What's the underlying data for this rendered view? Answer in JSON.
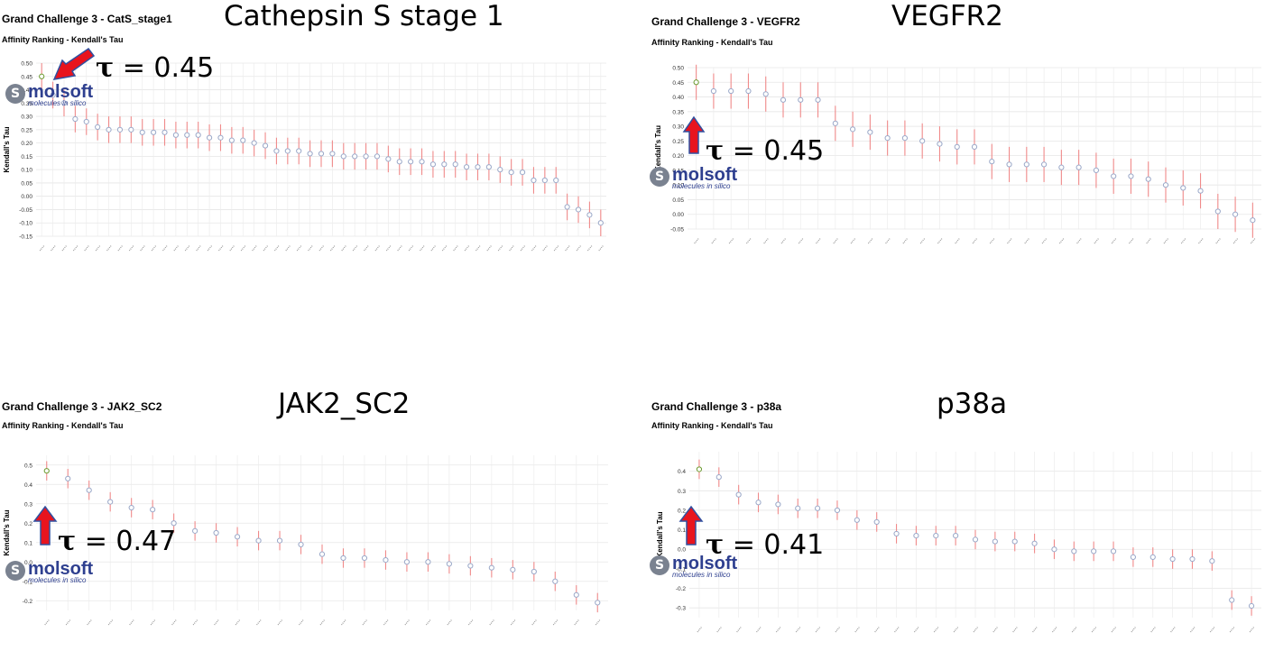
{
  "colors": {
    "errorbar": "#f08a8a",
    "marker": "#9aa8c8",
    "top_marker": "#6a9a2e",
    "arrow_fill": "#e8141e",
    "arrow_stroke": "#3050a0",
    "logo_blue": "#2e3f8f"
  },
  "logo": {
    "name": "molsoft",
    "tagline": "molecules in silico",
    "icon": "molsoft-s-icon"
  },
  "chart_data": [
    {
      "type": "scatter",
      "grand_title": "Grand Challenge 3 - CatS_stage1",
      "subtitle": "Affinity Ranking - Kendall's Tau",
      "big_title": "Cathepsin S stage 1",
      "annotation": {
        "symbol": "τ",
        "text": " = 0.45"
      },
      "arrow_direction": "down-left",
      "ylabel": "Kendall's Tau",
      "ylim": [
        -0.15,
        0.5
      ],
      "yticks": [
        "0.50",
        "0.45",
        "0.40",
        "0.35",
        "0.30",
        "0.25",
        "0.20",
        "0.15",
        "0.10",
        "0.05",
        "0.00",
        "-0.05",
        "-0.10",
        "-0.15"
      ],
      "values": [
        0.45,
        0.38,
        0.35,
        0.29,
        0.28,
        0.26,
        0.25,
        0.25,
        0.25,
        0.24,
        0.24,
        0.24,
        0.23,
        0.23,
        0.23,
        0.22,
        0.22,
        0.21,
        0.21,
        0.2,
        0.19,
        0.17,
        0.17,
        0.17,
        0.16,
        0.16,
        0.16,
        0.15,
        0.15,
        0.15,
        0.15,
        0.14,
        0.13,
        0.13,
        0.13,
        0.12,
        0.12,
        0.12,
        0.11,
        0.11,
        0.11,
        0.1,
        0.09,
        0.09,
        0.06,
        0.06,
        0.06,
        -0.04,
        -0.05,
        -0.07,
        -0.1
      ]
    },
    {
      "type": "scatter",
      "grand_title": "Grand Challenge 3 - VEGFR2",
      "subtitle": "Affinity Ranking - Kendall's Tau",
      "big_title": "VEGFR2",
      "annotation": {
        "symbol": "τ",
        "text": " = 0.45"
      },
      "arrow_direction": "up",
      "ylabel": "Kendall's Tau",
      "ylim": [
        -0.05,
        0.5
      ],
      "yticks": [
        "0.50",
        "0.45",
        "0.40",
        "0.35",
        "0.30",
        "0.25",
        "0.20",
        "0.15",
        "0.10",
        "0.05",
        "0.00",
        "-0.05"
      ],
      "values": [
        0.45,
        0.42,
        0.42,
        0.42,
        0.41,
        0.39,
        0.39,
        0.39,
        0.31,
        0.29,
        0.28,
        0.26,
        0.26,
        0.25,
        0.24,
        0.23,
        0.23,
        0.18,
        0.17,
        0.17,
        0.17,
        0.16,
        0.16,
        0.15,
        0.13,
        0.13,
        0.12,
        0.1,
        0.09,
        0.08,
        0.01,
        0.0,
        -0.02
      ]
    },
    {
      "type": "scatter",
      "grand_title": "Grand Challenge 3 - JAK2_SC2",
      "subtitle": "Affinity Ranking - Kendall's Tau",
      "big_title": "JAK2_SC2",
      "annotation": {
        "symbol": "τ",
        "text": " = 0.47"
      },
      "arrow_direction": "up",
      "ylabel": "Kendall's Tau",
      "ylim": [
        -0.25,
        0.55
      ],
      "yticks": [
        "0.5",
        "0.4",
        "0.3",
        "0.2",
        "0.1",
        "0.0",
        "-0.1",
        "-0.2"
      ],
      "values": [
        0.47,
        0.43,
        0.37,
        0.31,
        0.28,
        0.27,
        0.2,
        0.16,
        0.15,
        0.13,
        0.11,
        0.11,
        0.09,
        0.04,
        0.02,
        0.02,
        0.01,
        0.0,
        0.0,
        -0.01,
        -0.02,
        -0.03,
        -0.04,
        -0.05,
        -0.1,
        -0.17,
        -0.21
      ]
    },
    {
      "type": "scatter",
      "grand_title": "Grand Challenge 3 - p38a",
      "subtitle": "Affinity Ranking - Kendall's Tau",
      "big_title": "p38a",
      "annotation": {
        "symbol": "τ",
        "text": " = 0.41"
      },
      "arrow_direction": "up",
      "ylabel": "Kendall's Tau",
      "ylim": [
        -0.35,
        0.5
      ],
      "yticks": [
        "0.4",
        "0.3",
        "0.2",
        "0.1",
        "0.0",
        "-0.1",
        "-0.2",
        "-0.3"
      ],
      "values": [
        0.41,
        0.37,
        0.28,
        0.24,
        0.23,
        0.21,
        0.21,
        0.2,
        0.15,
        0.14,
        0.08,
        0.07,
        0.07,
        0.07,
        0.05,
        0.04,
        0.04,
        0.03,
        0.0,
        -0.01,
        -0.01,
        -0.01,
        -0.04,
        -0.04,
        -0.05,
        -0.05,
        -0.06,
        -0.26,
        -0.29
      ]
    }
  ]
}
